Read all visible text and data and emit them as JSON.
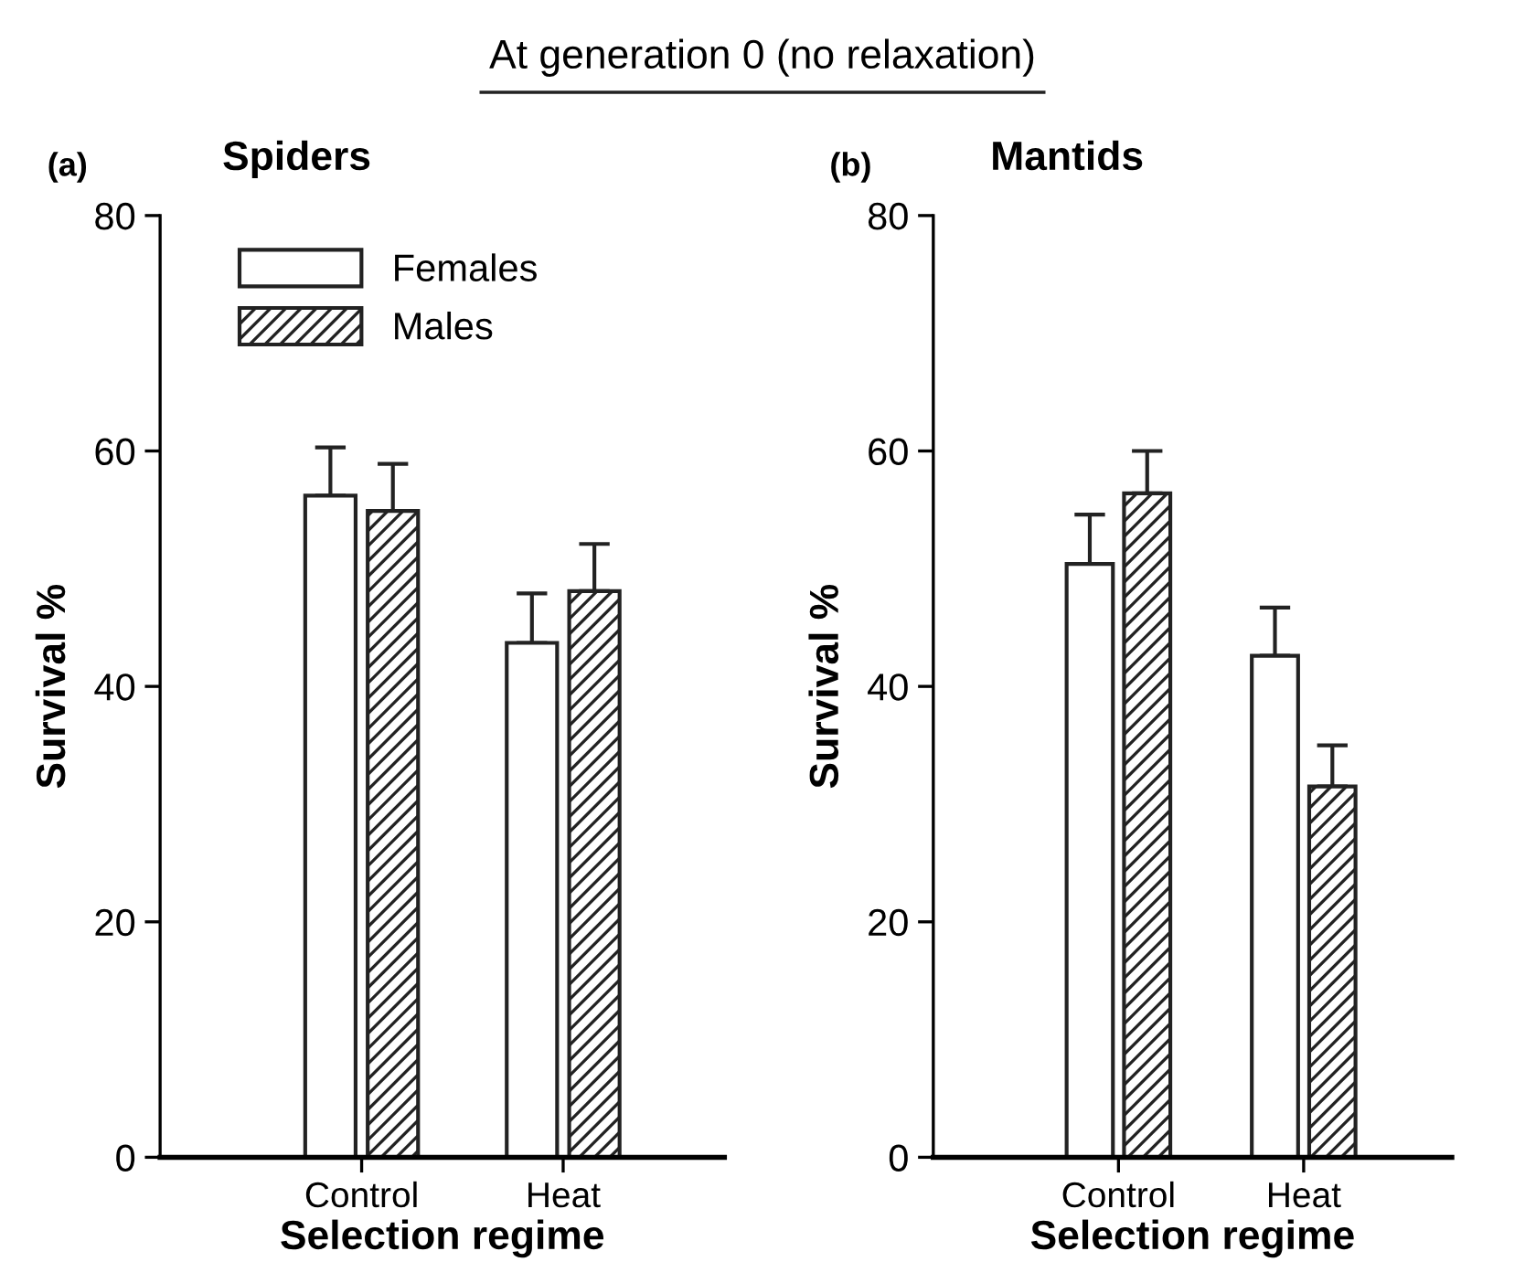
{
  "chart_data": [
    {
      "type": "bar",
      "title": "Spiders",
      "xlabel": "Selection regime",
      "ylabel": "Survival %",
      "annotations": [
        "At generation 0 (no relaxation)",
        "(a)"
      ],
      "categories": [
        "Control",
        "Heat"
      ],
      "ylim": [
        0,
        80
      ],
      "yticks": [
        0,
        20,
        40,
        60,
        80
      ],
      "grid": false,
      "legend": "top left",
      "series": [
        {
          "name": "Females",
          "color": "#ffffff",
          "values": [
            56.2,
            43.7
          ],
          "errors": [
            [
              56.2,
              60.3
            ],
            [
              43.7,
              47.9
            ]
          ]
        },
        {
          "name": "Males",
          "color": "#222222",
          "values": [
            54.9,
            48.1
          ],
          "errors": [
            [
              54.9,
              58.9
            ],
            [
              48.1,
              52.1
            ]
          ]
        }
      ]
    },
    {
      "type": "bar",
      "title": "Mantids",
      "xlabel": "Selection regime",
      "ylabel": "Survival %",
      "annotations": [
        "(b)"
      ],
      "categories": [
        "Control",
        "Heat"
      ],
      "ylim": [
        0,
        80
      ],
      "yticks": [
        0,
        20,
        40,
        60,
        80
      ],
      "grid": false,
      "legend": false,
      "series": [
        {
          "color": "#ffffff",
          "values": [
            50.4,
            42.6
          ],
          "errors": [
            [
              50.4,
              54.6
            ],
            [
              42.6,
              46.7
            ]
          ]
        },
        {
          "color": "#222222",
          "values": [
            56.4,
            31.5
          ],
          "errors": [
            [
              56.4,
              60.0
            ],
            [
              31.5,
              35.0
            ]
          ]
        }
      ]
    }
  ]
}
